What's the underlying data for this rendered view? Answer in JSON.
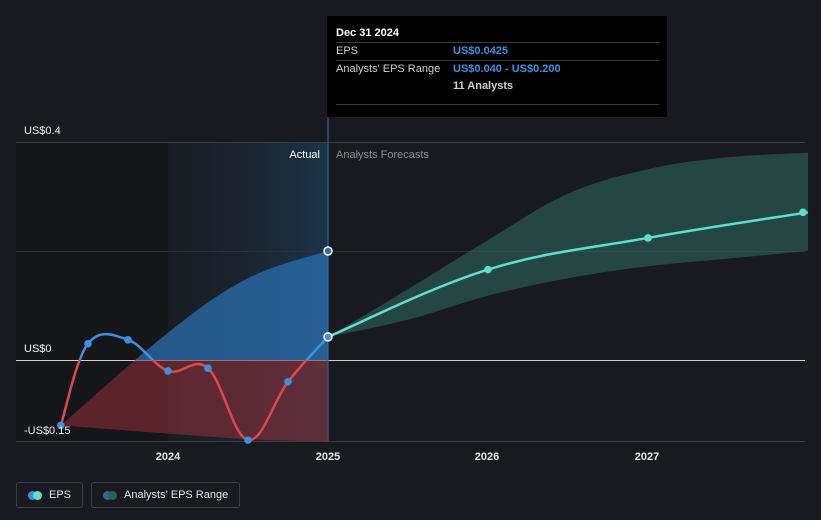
{
  "chart_data": {
    "type": "line",
    "title": "",
    "y_axis": {
      "labels": [
        "US$0.4",
        "US$0",
        "-US$0.15"
      ],
      "min": -0.15,
      "max": 0.4
    },
    "x_axis": {
      "labels": [
        "2024",
        "2025",
        "2026",
        "2027"
      ],
      "range": [
        2023.25,
        2028.0
      ]
    },
    "region_labels": {
      "actual": "Actual",
      "forecast": "Analysts Forecasts"
    },
    "series": [
      {
        "name": "EPS",
        "color": "#3d8fe0",
        "points": [
          {
            "x": 2023.33,
            "y": -0.12
          },
          {
            "x": 2023.5,
            "y": 0.03
          },
          {
            "x": 2023.75,
            "y": 0.037
          },
          {
            "x": 2024.0,
            "y": -0.02
          },
          {
            "x": 2024.25,
            "y": -0.015
          },
          {
            "x": 2024.5,
            "y": -0.147
          },
          {
            "x": 2024.75,
            "y": -0.04
          },
          {
            "x": 2025.0,
            "y": 0.0425
          }
        ]
      },
      {
        "name": "Analysts' EPS Range",
        "color": "#5fe0c8",
        "points": [
          {
            "x": 2025.0,
            "y": 0.0425
          },
          {
            "x": 2026.0,
            "y": 0.166
          },
          {
            "x": 2027.0,
            "y": 0.224
          },
          {
            "x": 2028.0,
            "y": 0.271
          }
        ],
        "range_upper": [
          {
            "x": 2025.0,
            "y": 0.0425
          },
          {
            "x": 2025.5,
            "y": 0.13
          },
          {
            "x": 2026.0,
            "y": 0.22
          },
          {
            "x": 2026.5,
            "y": 0.305
          },
          {
            "x": 2027.0,
            "y": 0.35
          },
          {
            "x": 2027.5,
            "y": 0.372
          },
          {
            "x": 2028.0,
            "y": 0.38
          }
        ],
        "range_lower": [
          {
            "x": 2025.0,
            "y": 0.0425
          },
          {
            "x": 2025.5,
            "y": 0.074
          },
          {
            "x": 2026.0,
            "y": 0.118
          },
          {
            "x": 2026.5,
            "y": 0.15
          },
          {
            "x": 2027.0,
            "y": 0.172
          },
          {
            "x": 2027.5,
            "y": 0.186
          },
          {
            "x": 2028.0,
            "y": 0.2
          }
        ]
      }
    ],
    "actual_range_band": {
      "upper": [
        {
          "x": 2023.33,
          "y": -0.12
        },
        {
          "x": 2024.0,
          "y": 0.05
        },
        {
          "x": 2024.5,
          "y": 0.15
        },
        {
          "x": 2025.0,
          "y": 0.2
        }
      ],
      "lower": [
        {
          "x": 2023.33,
          "y": -0.12
        },
        {
          "x": 2024.0,
          "y": -0.135
        },
        {
          "x": 2024.5,
          "y": -0.145
        },
        {
          "x": 2025.0,
          "y": -0.15
        }
      ],
      "marker_top": {
        "x": 2025.0,
        "y": 0.2
      }
    }
  },
  "tooltip": {
    "date": "Dec 31 2024",
    "rows": [
      {
        "label": "EPS",
        "value": "US$0.0425"
      },
      {
        "label": "Analysts' EPS Range",
        "value": "US$0.040 - US$0.200"
      },
      {
        "label": "",
        "value": "11 Analysts"
      }
    ]
  },
  "legend": [
    {
      "label": "EPS",
      "colors": [
        "#3d8fe0",
        "#5fe0c8"
      ]
    },
    {
      "label": "Analysts' EPS Range",
      "colors": [
        "#2b6a8f",
        "#2f5f58"
      ]
    }
  ]
}
